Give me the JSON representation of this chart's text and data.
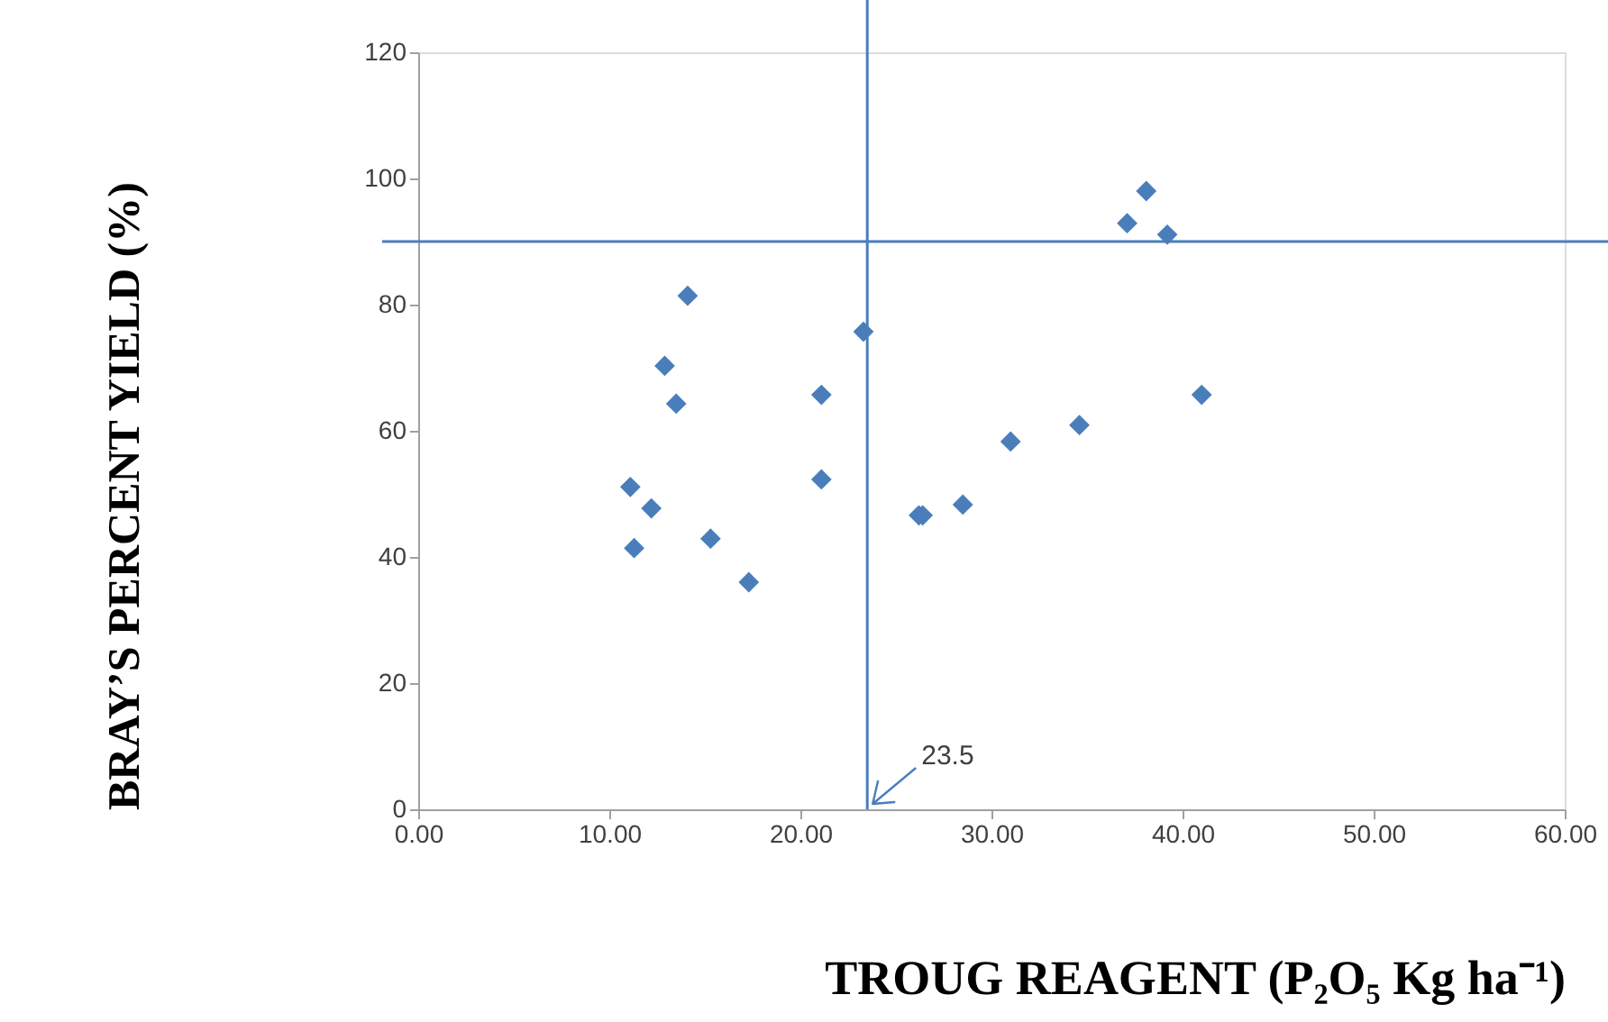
{
  "chart_data": {
    "type": "scatter",
    "xlabel": "TROUG REAGENT (P₂O₅ Kg ha⁻¹)",
    "ylabel": "BRAY’S PERCENT YIELD (%)",
    "x": [
      11.1,
      11.3,
      12.2,
      12.9,
      13.5,
      14.1,
      15.3,
      17.3,
      21.1,
      21.1,
      23.3,
      26.2,
      26.4,
      28.5,
      31.0,
      34.6,
      37.1,
      38.1,
      39.2,
      41.0
    ],
    "series": [
      {
        "color": "#4a7ebb",
        "values": [
          51.1,
          41.4,
          47.7,
          70.3,
          64.3,
          81.4,
          42.9,
          36.0,
          65.7,
          52.3,
          75.7,
          46.6,
          46.6,
          48.3,
          58.3,
          60.9,
          92.9,
          98.0,
          91.1,
          65.7
        ]
      }
    ],
    "marker": "diamond",
    "grid": false,
    "xlim": [
      0,
      60
    ],
    "xticks": [
      {
        "value": 0,
        "label": "0.00"
      },
      {
        "value": 10,
        "label": "10.00"
      },
      {
        "value": 20,
        "label": "20.00"
      },
      {
        "value": 30,
        "label": "30.00"
      },
      {
        "value": 40,
        "label": "40.00"
      },
      {
        "value": 50,
        "label": "50.00"
      },
      {
        "value": 60,
        "label": "60.00"
      }
    ],
    "ylim": [
      0,
      120
    ],
    "yticks": [
      0,
      20,
      40,
      60,
      80,
      100,
      120
    ],
    "ref_lines": [
      {
        "axis": "x",
        "value": 23.5,
        "label": "23.5",
        "color": "#4a7ebb"
      },
      {
        "axis": "y",
        "value": 90,
        "color": "#4a7ebb"
      }
    ]
  }
}
